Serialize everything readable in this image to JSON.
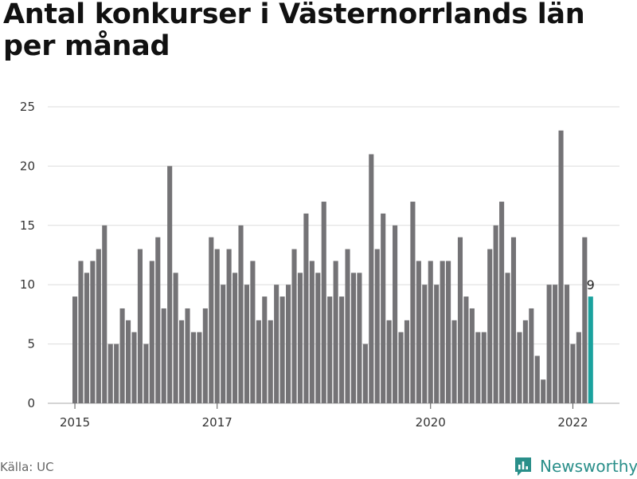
{
  "chart_data": {
    "type": "bar",
    "title": "Antal konkurser i Västernorrlands län per månad",
    "start": "2015-01",
    "values": [
      9,
      12,
      11,
      12,
      13,
      15,
      5,
      5,
      8,
      7,
      6,
      13,
      5,
      12,
      14,
      8,
      20,
      11,
      7,
      8,
      6,
      6,
      8,
      14,
      13,
      10,
      13,
      11,
      15,
      10,
      12,
      7,
      9,
      7,
      10,
      9,
      10,
      13,
      11,
      16,
      12,
      11,
      17,
      9,
      12,
      9,
      13,
      11,
      11,
      5,
      21,
      13,
      16,
      7,
      15,
      6,
      7,
      17,
      12,
      10,
      12,
      10,
      12,
      12,
      7,
      14,
      9,
      8,
      6,
      6,
      13,
      15,
      17,
      11,
      14,
      6,
      7,
      8,
      4,
      2,
      10,
      10,
      23,
      10,
      5,
      6,
      14,
      9
    ],
    "highlight_label": "9",
    "ylim": [
      0,
      25
    ],
    "yticks": [
      0,
      5,
      10,
      15,
      20,
      25
    ],
    "xticks": [
      "2015",
      "2017",
      "2020",
      "2022"
    ],
    "bar_color": "#747376",
    "highlight_color": "#1aa29e",
    "grid_color": "#dddddd"
  },
  "footer": {
    "source": "Källa: UC",
    "brand": "Newsworthy",
    "brand_color": "#2a8f8a"
  }
}
